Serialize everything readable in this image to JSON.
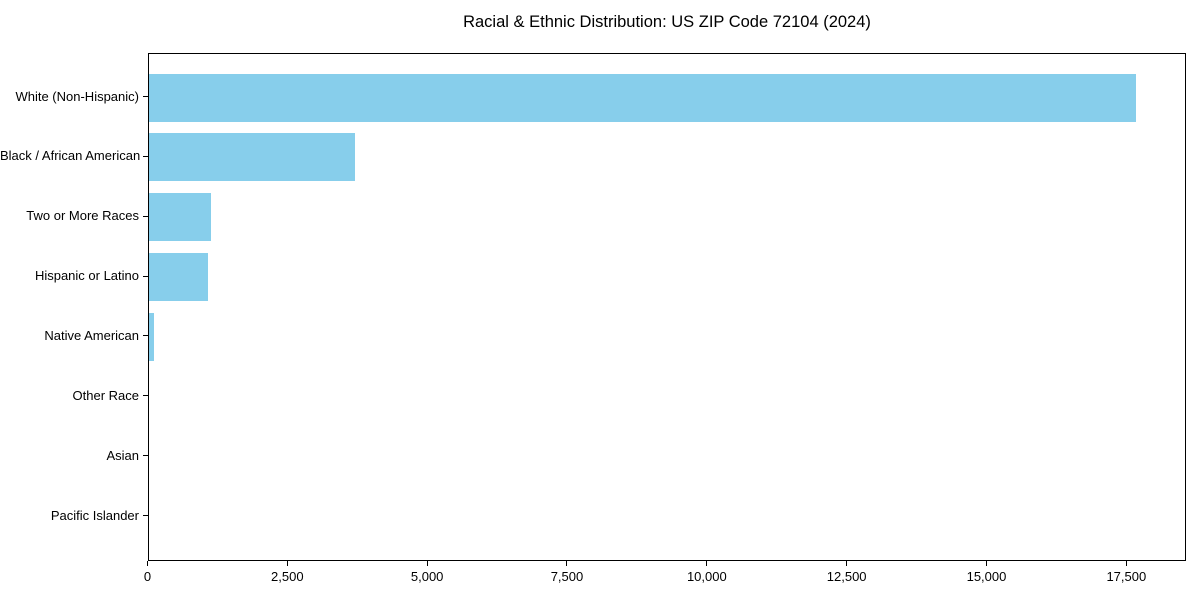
{
  "chart_data": {
    "type": "bar",
    "orientation": "horizontal",
    "title": "Racial & Ethnic Distribution: US ZIP Code 72104 (2024)",
    "categories": [
      "White (Non-Hispanic)",
      "Black / African American",
      "Two or More Races",
      "Hispanic or Latino",
      "Native American",
      "Other Race",
      "Asian",
      "Pacific Islander"
    ],
    "values": [
      17650,
      3690,
      1110,
      1060,
      105,
      0,
      0,
      0
    ],
    "xlabel": "",
    "ylabel": "",
    "xlim": [
      0,
      18540
    ],
    "x_ticks": [
      0,
      2500,
      5000,
      7500,
      10000,
      12500,
      15000,
      17500
    ],
    "x_tick_labels": [
      "0",
      "2,500",
      "5,000",
      "7,500",
      "10,000",
      "12,500",
      "15,000",
      "17,500"
    ],
    "bar_color": "#87CEEB",
    "spine_color": "#000000",
    "grid": false,
    "legend": "none"
  }
}
